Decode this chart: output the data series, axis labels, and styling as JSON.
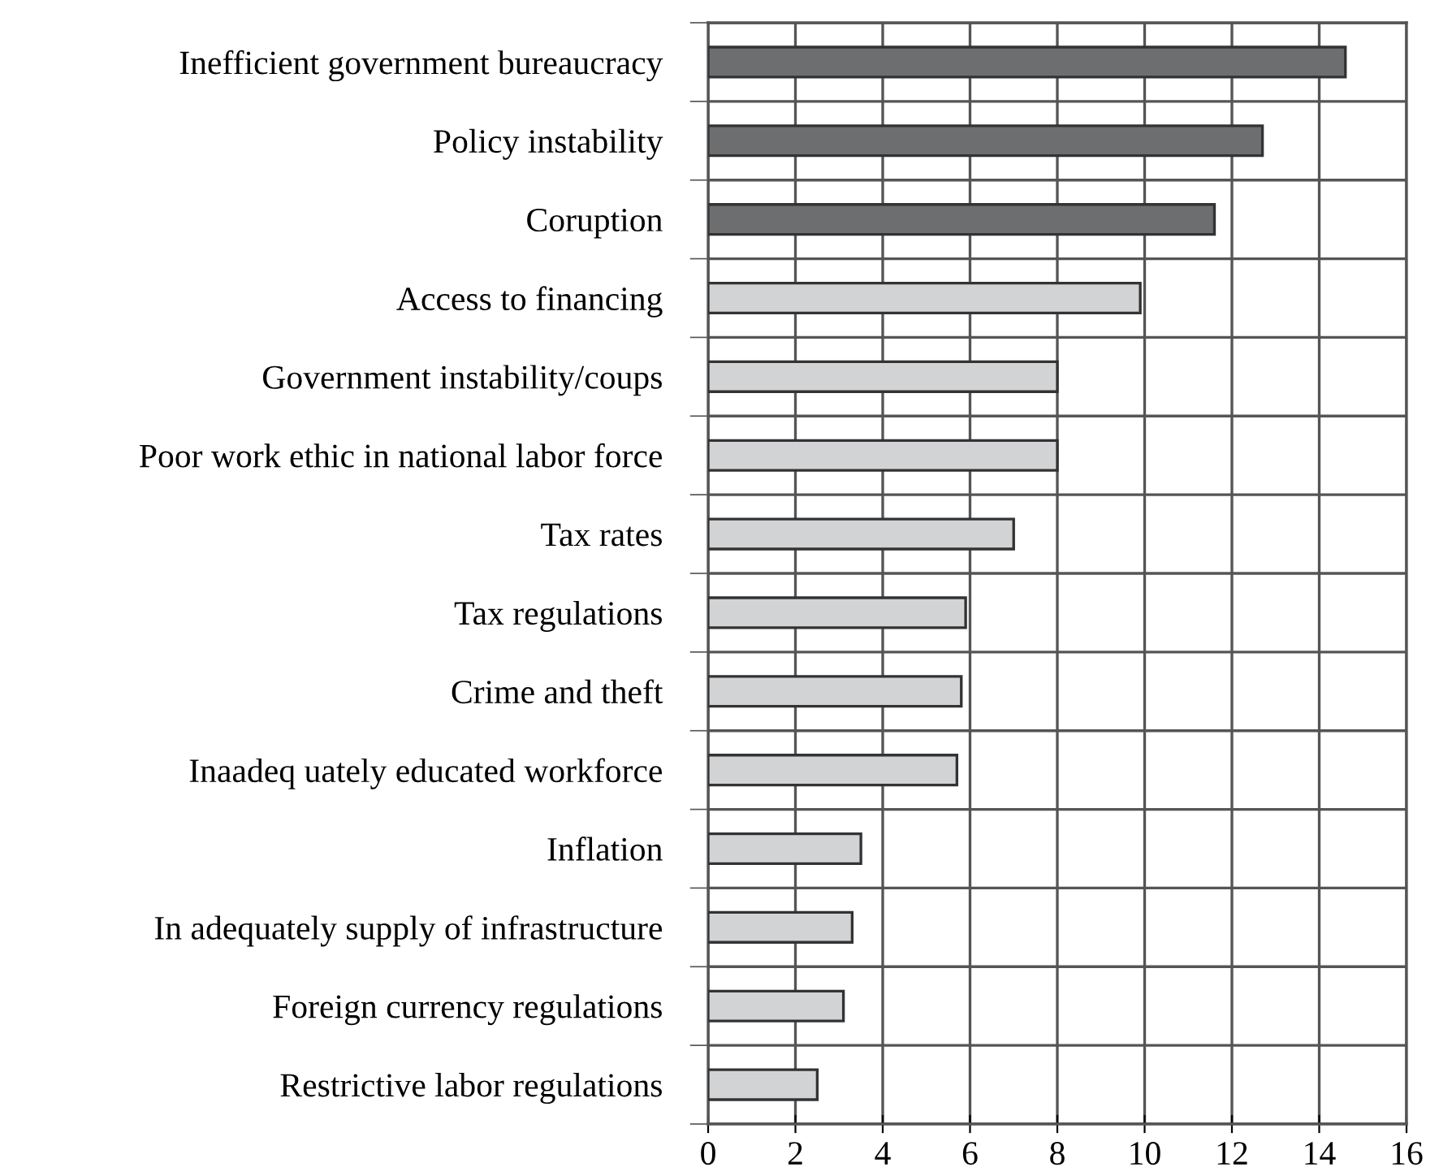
{
  "chart_data": {
    "type": "bar",
    "orientation": "horizontal",
    "categories": [
      "Inefficient government bureaucracy",
      "Policy instability",
      "Coruption",
      "Access to financing",
      "Government instability/coups",
      "Poor work ethic in national labor force",
      "Tax rates",
      "Tax regulations",
      "Crime and theft",
      "Inaadeq uately educated workforce",
      "Inflation",
      "In adequately supply of infrastructure",
      "Foreign currency regulations",
      "Restrictive labor regulations"
    ],
    "values": [
      14.6,
      12.7,
      11.6,
      9.9,
      8.0,
      8.0,
      7.0,
      5.9,
      5.8,
      5.7,
      3.5,
      3.3,
      3.1,
      2.5
    ],
    "colors": [
      "#6d6e70",
      "#6d6e70",
      "#6d6e70",
      "#d2d3d5",
      "#d2d3d5",
      "#d2d3d5",
      "#d2d3d5",
      "#d2d3d5",
      "#d2d3d5",
      "#d2d3d5",
      "#d2d3d5",
      "#d2d3d5",
      "#d2d3d5",
      "#d2d3d5"
    ],
    "xlim": [
      0,
      16
    ],
    "xticks": [
      0,
      2,
      4,
      6,
      8,
      10,
      12,
      14,
      16
    ],
    "grid": true,
    "legend": false
  }
}
